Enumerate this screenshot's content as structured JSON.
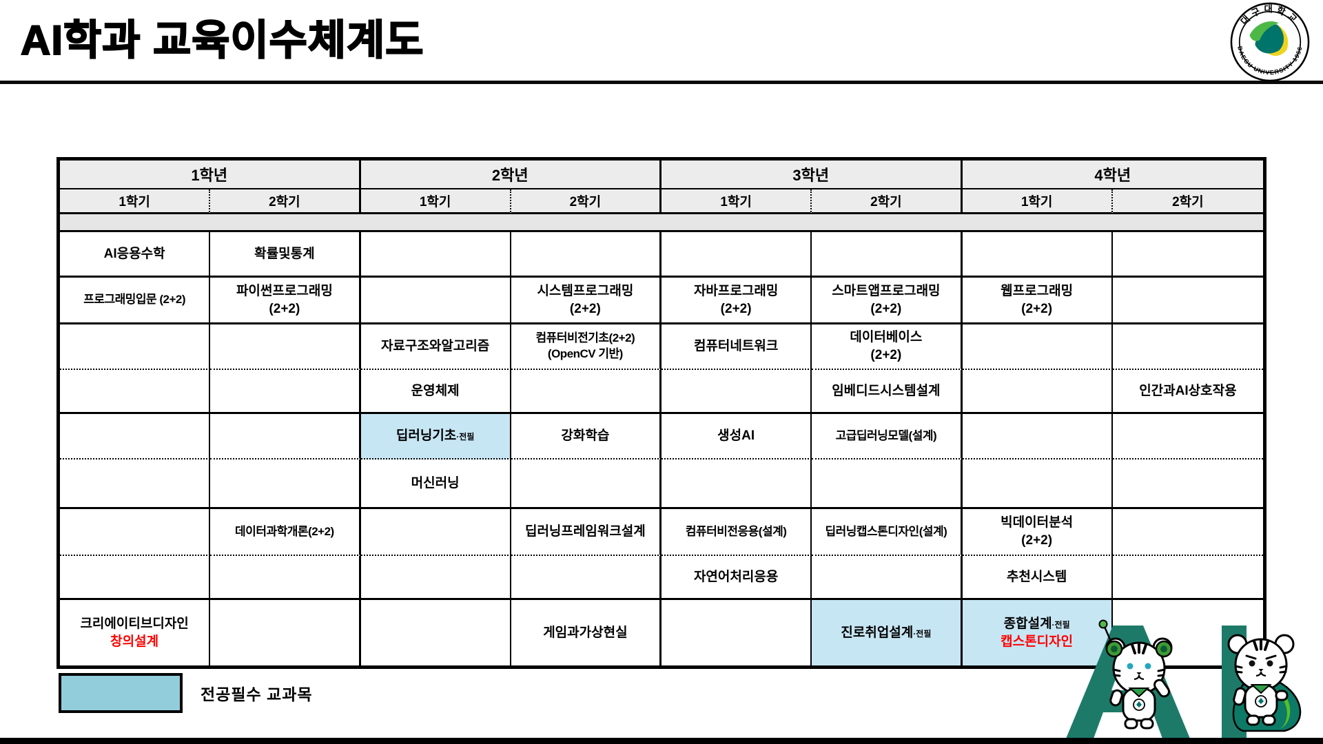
{
  "slide": {
    "title": "AI학과 교육이수체계도"
  },
  "university_logo": {
    "name_korean": "대구대학교",
    "name_english_year": "DAEGU UNIVERSITY 1956"
  },
  "mascot": {
    "letters": "AI"
  },
  "legend": {
    "swatch_meaning": "전공필수 교과목"
  },
  "colors": {
    "required_highlight_cell": "#C7E6F4",
    "legend_swatch": "#92CDDC",
    "required_text_red": "#FF0000",
    "header_gray": "#ECECEC",
    "brand_teal": "#1D7A69"
  },
  "curriculum_table": {
    "year_headers": [
      "1학년",
      "2학년",
      "3학년",
      "4학년"
    ],
    "semester_headers": [
      "1학기",
      "2학기",
      "1학기",
      "2학기",
      "1학기",
      "2학기",
      "1학기",
      "2학기"
    ],
    "rows": [
      {
        "cells": [
          {
            "lines": [
              {
                "text": "AI응용수학"
              }
            ]
          },
          {
            "lines": [
              {
                "text": "확률및통계"
              }
            ]
          },
          null,
          null,
          null,
          null,
          null,
          null
        ]
      },
      {
        "cells": [
          {
            "lines": [
              {
                "text": "프로그래밍입문 (2+2)"
              }
            ]
          },
          {
            "lines": [
              {
                "text": "파이썬프로그래밍"
              },
              {
                "text": "(2+2)"
              }
            ]
          },
          null,
          {
            "lines": [
              {
                "text": "시스템프로그래밍"
              },
              {
                "text": "(2+2)"
              }
            ]
          },
          {
            "lines": [
              {
                "text": "자바프로그래밍"
              },
              {
                "text": "(2+2)"
              }
            ]
          },
          {
            "lines": [
              {
                "text": "스마트앱프로그래밍"
              },
              {
                "text": "(2+2)"
              }
            ]
          },
          {
            "lines": [
              {
                "text": "웹프로그래밍"
              },
              {
                "text": "(2+2)"
              }
            ]
          },
          null
        ]
      },
      {
        "cells": [
          null,
          null,
          {
            "lines": [
              {
                "text": "자료구조와알고리즘"
              }
            ]
          },
          {
            "lines": [
              {
                "text": "컴퓨터비전기초(2+2)"
              },
              {
                "text": "(OpenCV 기반)"
              }
            ]
          },
          {
            "lines": [
              {
                "text": "컴퓨터네트워크"
              }
            ]
          },
          {
            "lines": [
              {
                "text": "데이터베이스"
              },
              {
                "text": "(2+2)"
              }
            ]
          },
          null,
          null
        ]
      },
      {
        "cells": [
          null,
          null,
          {
            "lines": [
              {
                "text": "운영체제"
              }
            ]
          },
          null,
          null,
          {
            "lines": [
              {
                "text": "임베디드시스템설계"
              }
            ]
          },
          null,
          {
            "lines": [
              {
                "text": "인간과AI상호작용"
              }
            ]
          }
        ]
      },
      {
        "cells": [
          null,
          null,
          {
            "hl": true,
            "lines": [
              {
                "text": "딥러닝기초",
                "small": "·전필"
              }
            ]
          },
          {
            "lines": [
              {
                "text": "강화학습"
              }
            ]
          },
          {
            "lines": [
              {
                "text": "생성AI"
              }
            ]
          },
          {
            "lines": [
              {
                "text": "고급딥러닝모델(설계)"
              }
            ]
          },
          null,
          null
        ]
      },
      {
        "cells": [
          null,
          null,
          {
            "lines": [
              {
                "text": "머신러닝"
              }
            ]
          },
          null,
          null,
          null,
          null,
          null
        ]
      },
      {
        "cells": [
          null,
          {
            "lines": [
              {
                "text": "데이터과학개론(2+2)"
              }
            ]
          },
          null,
          {
            "lines": [
              {
                "text": "딥러닝프레임워크설계"
              }
            ]
          },
          {
            "lines": [
              {
                "text": "컴퓨터비전응용(설계)"
              }
            ]
          },
          {
            "lines": [
              {
                "text": "딥러닝캡스톤디자인(설계)"
              }
            ]
          },
          {
            "lines": [
              {
                "text": "빅데이터분석"
              },
              {
                "text": "(2+2)"
              }
            ]
          },
          null
        ]
      },
      {
        "cells": [
          null,
          null,
          null,
          null,
          {
            "lines": [
              {
                "text": "자연어처리응용"
              }
            ]
          },
          null,
          {
            "lines": [
              {
                "text": "추천시스템"
              }
            ]
          },
          null
        ]
      },
      {
        "cells": [
          {
            "lines": [
              {
                "text": "크리에이티브디자인"
              },
              {
                "text": "창의설계",
                "red": true
              }
            ]
          },
          null,
          null,
          {
            "lines": [
              {
                "text": "게임과가상현실"
              }
            ]
          },
          null,
          {
            "hl": true,
            "lines": [
              {
                "text": "진로취업설계",
                "small": "·전필"
              }
            ]
          },
          {
            "hl": true,
            "lines": [
              {
                "text": "종합설계",
                "small": "·전필"
              },
              {
                "text": "캡스톤디자인",
                "red": true
              }
            ]
          },
          null
        ]
      }
    ]
  }
}
